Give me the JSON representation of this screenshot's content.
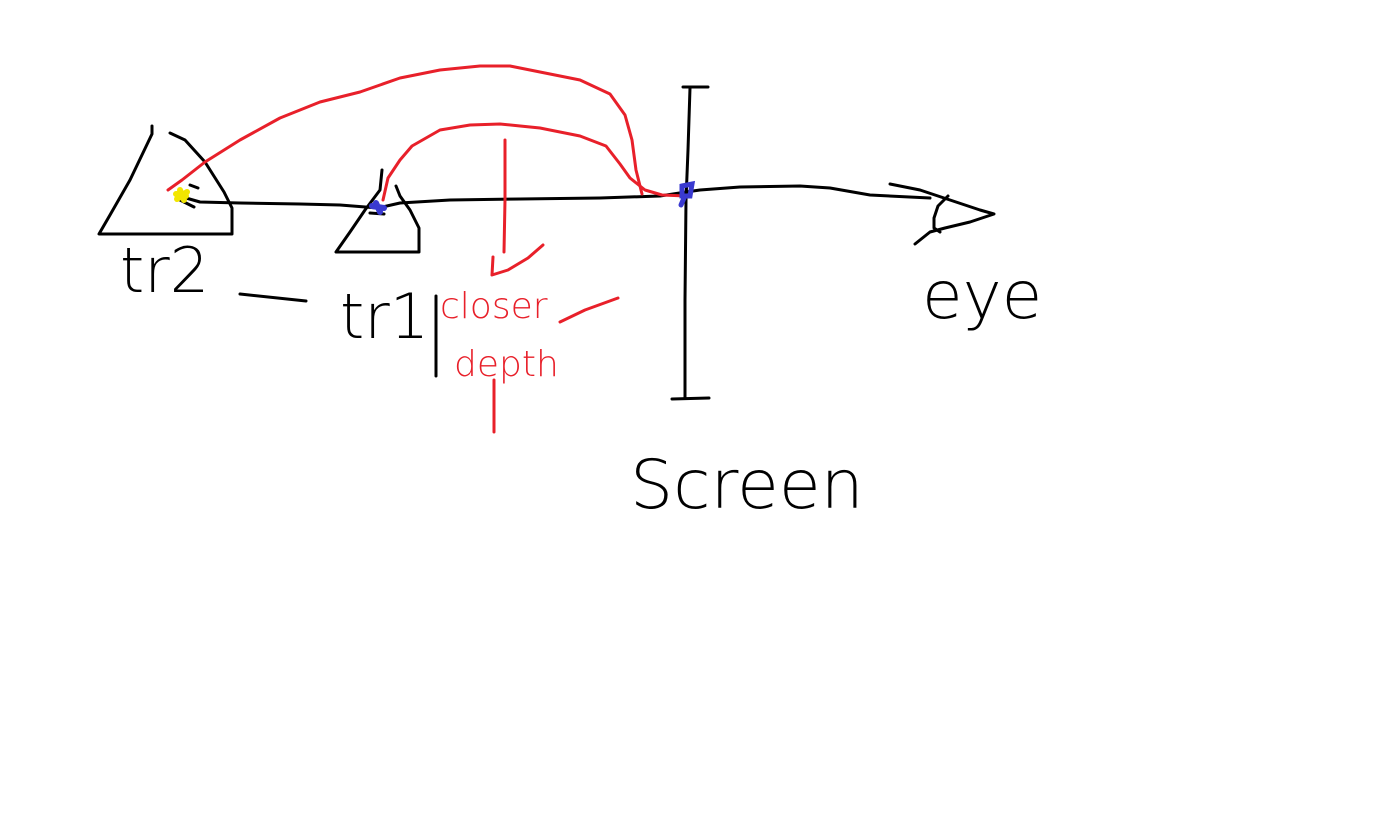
{
  "diagram": {
    "labels": {
      "tri2": "tr2",
      "tri1": "tr1",
      "closer_depth_line1": "closer",
      "closer_depth_line2": "depth",
      "screen": "Screen",
      "eye": "eye"
    },
    "colors": {
      "ink": "#000000",
      "annotation": "#e8202a",
      "far_point": "#f2e600",
      "near_point": "#3a3ad0",
      "background": "#ffffff"
    }
  }
}
